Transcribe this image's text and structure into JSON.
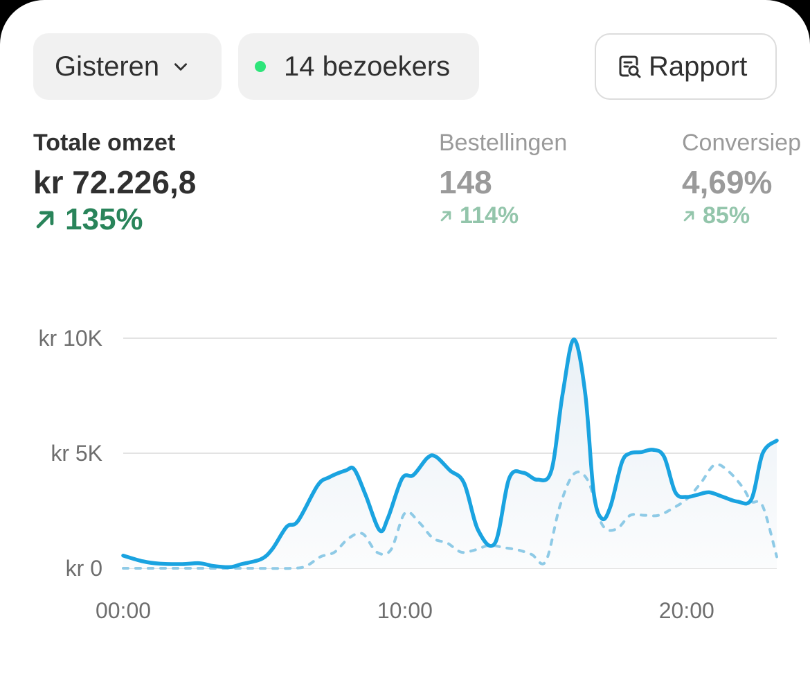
{
  "toolbar": {
    "date_range": "Gisteren",
    "visitors": "14 bezoekers",
    "report_label": "Rapport"
  },
  "metrics": [
    {
      "label": "Totale omzet",
      "value": "kr 72.226,8",
      "change": "135%"
    },
    {
      "label": "Bestellingen",
      "value": "148",
      "change": "114%"
    },
    {
      "label": "Conversiep",
      "value": "4,69%",
      "change": "85%"
    }
  ],
  "colors": {
    "primary_line": "#1aa3e0",
    "comparison_line": "#8ecae6",
    "positive": "#29845a",
    "positive_muted": "#93c5ab",
    "live_dot": "#2ee57a"
  },
  "chart_data": {
    "type": "line",
    "x_unit": "hour",
    "x_ticks": [
      {
        "value": 0,
        "label": "00:00"
      },
      {
        "value": 10,
        "label": "10:00"
      },
      {
        "value": 20,
        "label": "20:00"
      }
    ],
    "y_ticks": [
      {
        "value": 0,
        "label": "kr 0"
      },
      {
        "value": 5000,
        "label": "kr 5K"
      },
      {
        "value": 10000,
        "label": "kr 10K"
      }
    ],
    "xlim": [
      0,
      23.2
    ],
    "ylim": [
      0,
      10000
    ],
    "grid": true,
    "series": [
      {
        "style": "solid",
        "x": [
          0,
          0.7,
          1.3,
          2.1,
          2.7,
          3.2,
          3.8,
          4.2,
          4.9,
          5.3,
          5.8,
          6.2,
          6.9,
          7.3,
          7.9,
          8.2,
          8.6,
          9.1,
          9.4,
          9.9,
          10.3,
          10.8,
          11.1,
          11.6,
          12.1,
          12.6,
          13.2,
          13.7,
          14.2,
          14.7,
          15.2,
          15.6,
          16.0,
          16.4,
          16.7,
          17.0,
          17.3,
          17.7,
          18.0,
          18.4,
          18.8,
          19.2,
          19.6,
          20.0,
          20.4,
          20.8,
          21.3,
          21.8,
          22.3,
          22.7,
          23.2
        ],
        "y": [
          550,
          300,
          200,
          180,
          220,
          100,
          50,
          180,
          400,
          850,
          1800,
          2050,
          3600,
          3950,
          4250,
          4300,
          3200,
          1650,
          2200,
          3900,
          4050,
          4800,
          4850,
          4250,
          3700,
          1650,
          1100,
          3900,
          4150,
          3850,
          4250,
          7600,
          9950,
          7600,
          3300,
          2150,
          2700,
          4600,
          5000,
          5050,
          5150,
          4850,
          3300,
          3100,
          3200,
          3300,
          3100,
          2900,
          3000,
          5000,
          5550
        ]
      },
      {
        "style": "dashed",
        "x": [
          0,
          1.5,
          3.0,
          4.5,
          6.0,
          6.5,
          7.0,
          7.5,
          8.0,
          8.5,
          9.0,
          9.5,
          10.0,
          10.5,
          11.0,
          11.5,
          12.0,
          12.5,
          13.0,
          13.5,
          14.0,
          14.5,
          15.0,
          15.5,
          16.0,
          16.5,
          17.0,
          17.5,
          18.0,
          18.5,
          19.0,
          19.5,
          20.0,
          20.5,
          21.0,
          21.5,
          22.0,
          22.3,
          22.7,
          23.2
        ],
        "y": [
          0,
          0,
          0,
          0,
          0,
          100,
          500,
          700,
          1300,
          1500,
          700,
          800,
          2400,
          2000,
          1300,
          1100,
          700,
          800,
          1000,
          900,
          800,
          600,
          300,
          2700,
          4100,
          3800,
          1900,
          1700,
          2300,
          2300,
          2300,
          2600,
          3000,
          3700,
          4500,
          4200,
          3500,
          2900,
          2700,
          500
        ]
      }
    ]
  }
}
